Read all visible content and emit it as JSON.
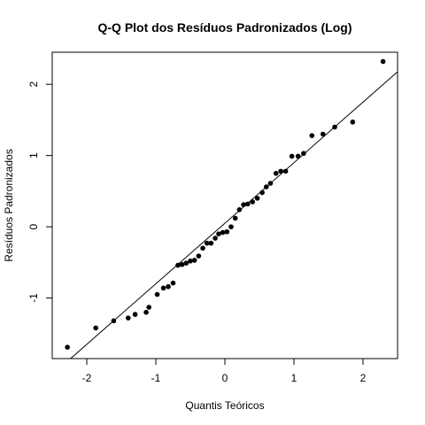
{
  "chart_data": {
    "type": "scatter",
    "title": "Q-Q Plot dos Resíduos Padronizados (Log)",
    "xlabel": "Quantis Teóricos",
    "ylabel": "Resíduos Padronizados",
    "xlim": [
      -2.5,
      2.5
    ],
    "ylim": [
      -1.85,
      2.45
    ],
    "xticks": [
      -2,
      -1,
      0,
      1,
      2
    ],
    "yticks": [
      -1,
      0,
      1,
      2
    ],
    "xtick_labels": [
      "-2",
      "-1",
      "0",
      "1",
      "2"
    ],
    "ytick_labels": [
      "-1",
      "0",
      "1",
      "2"
    ],
    "grid": false,
    "reference_line": {
      "slope": 0.85,
      "intercept": 0.05
    },
    "points": [
      {
        "x": -2.28,
        "y": -1.69
      },
      {
        "x": -1.87,
        "y": -1.42
      },
      {
        "x": -1.61,
        "y": -1.32
      },
      {
        "x": -1.4,
        "y": -1.28
      },
      {
        "x": -1.3,
        "y": -1.23
      },
      {
        "x": -1.14,
        "y": -1.2
      },
      {
        "x": -1.1,
        "y": -1.13
      },
      {
        "x": -0.98,
        "y": -0.95
      },
      {
        "x": -0.89,
        "y": -0.86
      },
      {
        "x": -0.82,
        "y": -0.84
      },
      {
        "x": -0.75,
        "y": -0.79
      },
      {
        "x": -0.68,
        "y": -0.54
      },
      {
        "x": -0.62,
        "y": -0.53
      },
      {
        "x": -0.56,
        "y": -0.51
      },
      {
        "x": -0.5,
        "y": -0.48
      },
      {
        "x": -0.44,
        "y": -0.47
      },
      {
        "x": -0.38,
        "y": -0.41
      },
      {
        "x": -0.32,
        "y": -0.3
      },
      {
        "x": -0.26,
        "y": -0.23
      },
      {
        "x": -0.2,
        "y": -0.23
      },
      {
        "x": -0.14,
        "y": -0.16
      },
      {
        "x": -0.09,
        "y": -0.1
      },
      {
        "x": -0.03,
        "y": -0.08
      },
      {
        "x": 0.03,
        "y": -0.07
      },
      {
        "x": 0.09,
        "y": 0.0
      },
      {
        "x": 0.15,
        "y": 0.12
      },
      {
        "x": 0.21,
        "y": 0.24
      },
      {
        "x": 0.27,
        "y": 0.31
      },
      {
        "x": 0.33,
        "y": 0.32
      },
      {
        "x": 0.4,
        "y": 0.35
      },
      {
        "x": 0.47,
        "y": 0.4
      },
      {
        "x": 0.54,
        "y": 0.48
      },
      {
        "x": 0.6,
        "y": 0.56
      },
      {
        "x": 0.66,
        "y": 0.61
      },
      {
        "x": 0.74,
        "y": 0.75
      },
      {
        "x": 0.81,
        "y": 0.78
      },
      {
        "x": 0.88,
        "y": 0.78
      },
      {
        "x": 0.97,
        "y": 0.99
      },
      {
        "x": 1.06,
        "y": 0.99
      },
      {
        "x": 1.14,
        "y": 1.03
      },
      {
        "x": 1.26,
        "y": 1.28
      },
      {
        "x": 1.42,
        "y": 1.3
      },
      {
        "x": 1.59,
        "y": 1.4
      },
      {
        "x": 1.85,
        "y": 1.47
      },
      {
        "x": 2.29,
        "y": 2.32
      }
    ]
  }
}
